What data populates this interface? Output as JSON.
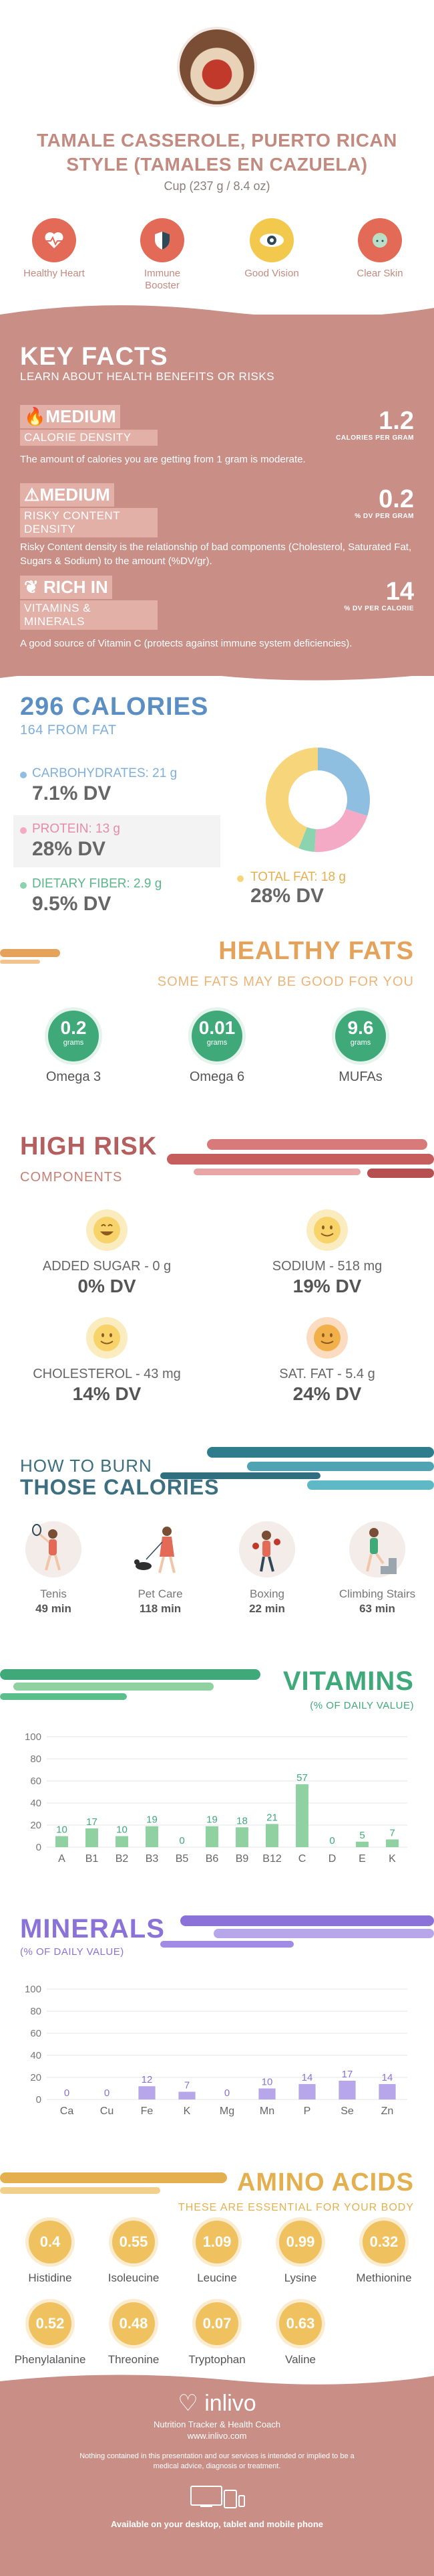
{
  "header": {
    "title": "TAMALE CASSEROLE, PUERTO RICAN STYLE (TAMALES EN CAZUELA)",
    "serving": "Cup (237 g / 8.4 oz)"
  },
  "benefits": [
    {
      "label": "Healthy Heart",
      "icon": "heart-icon",
      "color": "#e26a57"
    },
    {
      "label": "Immune Booster",
      "icon": "shield-icon",
      "color": "#e26a57"
    },
    {
      "label": "Good Vision",
      "icon": "eye-icon",
      "color": "#f2c94c"
    },
    {
      "label": "Clear Skin",
      "icon": "face-icon",
      "color": "#e26a57"
    }
  ],
  "key_facts": {
    "title": "KEY FACTS",
    "subtitle": "LEARN ABOUT HEALTH BENEFITS OR RISKS",
    "facts": [
      {
        "level": "MEDIUM",
        "category": "CALORIE DENSITY",
        "icon": "fire-icon",
        "description": "The amount of calories you are getting from 1 gram is moderate.",
        "value": "1.2",
        "unit": "CALORIES PER GRAM"
      },
      {
        "level": "MEDIUM",
        "category": "RISKY CONTENT DENSITY",
        "icon": "warning-icon",
        "description": "Risky Content density is the relationship of bad components (Cholesterol, Saturated Fat, Sugars & Sodium) to the amount (%DV/gr).",
        "value": "0.2",
        "unit": "% DV PER GRAM"
      },
      {
        "level": "RICH IN",
        "category": "VITAMINS & MINERALS",
        "icon": "leaf-icon",
        "description": "A good source of Vitamin C (protects against immune system deficiencies).",
        "value": "14",
        "unit": "% DV PER CALORIE"
      }
    ]
  },
  "calories": {
    "title": "296 CALORIES",
    "subtitle": "164 FROM FAT",
    "macros": [
      {
        "name": "CARBOHYDRATES: 21 g",
        "dv": "7.1% DV",
        "color": "#8fbfe0"
      },
      {
        "name": "PROTEIN: 13 g",
        "dv": "28% DV",
        "color": "#f4a9c4"
      },
      {
        "name": "DIETARY FIBER: 2.9 g",
        "dv": "9.5% DV",
        "color": "#8cd3b0"
      },
      {
        "name": "TOTAL FAT: 18 g",
        "dv": "28% DV",
        "color": "#f7d57a"
      }
    ]
  },
  "chart_data": [
    {
      "type": "pie",
      "categories": [
        "Carbohydrates",
        "Protein",
        "Dietary Fiber",
        "Total Fat"
      ],
      "values": [
        30,
        21,
        5,
        44
      ],
      "colors": [
        "#8fbfe0",
        "#f4a9c4",
        "#8cd3b0",
        "#f7d57a"
      ]
    },
    {
      "type": "bar",
      "title": "VITAMINS",
      "subtitle": "(% OF DAILY VALUE)",
      "categories": [
        "A",
        "B1",
        "B2",
        "B3",
        "B5",
        "B6",
        "B9",
        "B12",
        "C",
        "D",
        "E",
        "K"
      ],
      "values": [
        10,
        17,
        10,
        19,
        0,
        19,
        18,
        21,
        57,
        0,
        5,
        7
      ],
      "yticks": [
        0,
        20,
        40,
        60,
        80,
        100
      ],
      "ylim": [
        0,
        100
      ],
      "color": "#8fd1a0",
      "label_color": "#3fa97a"
    },
    {
      "type": "bar",
      "title": "MINERALS",
      "subtitle": "(% OF DAILY VALUE)",
      "categories": [
        "Ca",
        "Cu",
        "Fe",
        "K",
        "Mg",
        "Mn",
        "P",
        "Se",
        "Zn"
      ],
      "values": [
        0,
        0,
        12,
        7,
        0,
        10,
        14,
        17,
        14
      ],
      "yticks": [
        0,
        20,
        40,
        60,
        80,
        100
      ],
      "ylim": [
        0,
        100
      ],
      "color": "#b8a6ea",
      "label_color": "#8a72d8"
    }
  ],
  "healthy_fats": {
    "title": "HEALTHY FATS",
    "subtitle": "SOME FATS MAY BE GOOD FOR YOU",
    "unit": "grams",
    "items": [
      {
        "value": "0.2",
        "label": "Omega 3"
      },
      {
        "value": "0.01",
        "label": "Omega 6"
      },
      {
        "value": "9.6",
        "label": "MUFAs"
      }
    ]
  },
  "high_risk": {
    "title": "HIGH RISK",
    "subtitle": "COMPONENTS",
    "items": [
      {
        "name": "ADDED SUGAR - 0 g",
        "dv": "0% DV",
        "color": "#f7d36a",
        "face": "grin-icon"
      },
      {
        "name": "SODIUM - 518 mg",
        "dv": "19% DV",
        "color": "#f7d36a",
        "face": "smile-icon"
      },
      {
        "name": "CHOLESTEROL - 43 mg",
        "dv": "14% DV",
        "color": "#f7d36a",
        "face": "smile-icon"
      },
      {
        "name": "SAT. FAT - 5.4 g",
        "dv": "24% DV",
        "color": "#f2b04a",
        "face": "smile-icon"
      }
    ]
  },
  "burn": {
    "title_line1": "HOW TO BURN",
    "title_line2": "THOSE CALORIES",
    "activities": [
      {
        "name": "Tenis",
        "minutes": "49 min",
        "icon": "tennis-player-icon"
      },
      {
        "name": "Pet Care",
        "minutes": "118 min",
        "icon": "dog-walker-icon"
      },
      {
        "name": "Boxing",
        "minutes": "22 min",
        "icon": "boxer-icon"
      },
      {
        "name": "Climbing Stairs",
        "minutes": "63 min",
        "icon": "stair-climber-icon"
      }
    ]
  },
  "amino": {
    "title": "AMINO ACIDS",
    "subtitle": "THESE ARE ESSENTIAL FOR YOUR BODY",
    "items": [
      {
        "value": "0.4",
        "name": "Histidine"
      },
      {
        "value": "0.55",
        "name": "Isoleucine"
      },
      {
        "value": "1.09",
        "name": "Leucine"
      },
      {
        "value": "0.99",
        "name": "Lysine"
      },
      {
        "value": "0.32",
        "name": "Methionine"
      },
      {
        "value": "0.52",
        "name": "Phenylalanine"
      },
      {
        "value": "0.48",
        "name": "Threonine"
      },
      {
        "value": "0.07",
        "name": "Tryptophan"
      },
      {
        "value": "0.63",
        "name": "Valine"
      }
    ]
  },
  "footer": {
    "brand": "inlivo",
    "tagline": "Nutrition Tracker & Health Coach",
    "url": "www.inlivo.com",
    "disclaimer": "Nothing contained in this presentation and our services is intended or implied to be a medical advice, diagnosis or treatment.",
    "available": "Available on your desktop, tablet and mobile phone"
  }
}
